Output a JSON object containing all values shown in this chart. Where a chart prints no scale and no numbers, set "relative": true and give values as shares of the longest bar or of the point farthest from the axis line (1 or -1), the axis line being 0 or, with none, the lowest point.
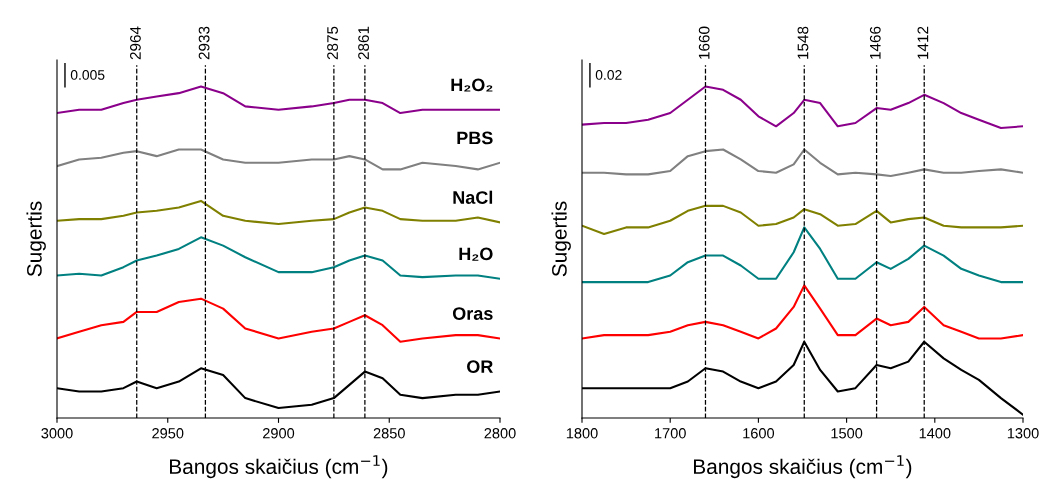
{
  "chart_data": [
    {
      "type": "line",
      "relative": true,
      "xlabel": "Bangos skaičius (cm$^{−1}$)",
      "ylabel": "Sugertis",
      "annotations": [
        "0.005"
      ],
      "x": [
        3000,
        2990,
        2980,
        2970,
        2964,
        2955,
        2945,
        2935,
        2925,
        2915,
        2900,
        2885,
        2875,
        2868,
        2861,
        2853,
        2845,
        2835,
        2820,
        2810,
        2800
      ],
      "xlim": [
        3000,
        2800
      ],
      "xticks": [
        3000,
        2950,
        2900,
        2850,
        2800
      ],
      "ref_lines": [
        {
          "axis": "x",
          "value": 2964,
          "label": "2964",
          "line_style": "dashed",
          "color": "#000000"
        },
        {
          "axis": "x",
          "value": 2933,
          "label": "2933",
          "line_style": "dashed",
          "color": "#000000"
        },
        {
          "axis": "x",
          "value": 2875,
          "label": "2875",
          "line_style": "dashed",
          "color": "#000000"
        },
        {
          "axis": "x",
          "value": 2861,
          "label": "2861",
          "line_style": "dashed",
          "color": "#000000"
        }
      ],
      "series": [
        {
          "name": "H₂O₂",
          "color": "#8b008b",
          "values": [
            0.92,
            0.93,
            0.93,
            0.95,
            0.96,
            0.97,
            0.98,
            1.0,
            0.98,
            0.94,
            0.93,
            0.94,
            0.95,
            0.96,
            0.96,
            0.95,
            0.92,
            0.93,
            0.93,
            0.93,
            0.93
          ]
        },
        {
          "name": "PBS",
          "color": "#808080",
          "values": [
            0.76,
            0.78,
            0.785,
            0.8,
            0.805,
            0.79,
            0.81,
            0.81,
            0.78,
            0.77,
            0.77,
            0.78,
            0.78,
            0.79,
            0.78,
            0.75,
            0.75,
            0.77,
            0.76,
            0.75,
            0.77
          ]
        },
        {
          "name": "NaCl",
          "color": "#808000",
          "values": [
            0.595,
            0.6,
            0.6,
            0.61,
            0.62,
            0.625,
            0.635,
            0.655,
            0.61,
            0.595,
            0.585,
            0.595,
            0.6,
            0.62,
            0.635,
            0.625,
            0.6,
            0.595,
            0.595,
            0.605,
            0.59
          ]
        },
        {
          "name": "H₂O",
          "color": "#008080",
          "values": [
            0.43,
            0.435,
            0.43,
            0.455,
            0.475,
            0.49,
            0.51,
            0.545,
            0.52,
            0.485,
            0.44,
            0.44,
            0.455,
            0.475,
            0.49,
            0.475,
            0.43,
            0.425,
            0.43,
            0.43,
            0.42
          ]
        },
        {
          "name": "Oras",
          "color": "#ff0000",
          "values": [
            0.24,
            0.26,
            0.28,
            0.29,
            0.32,
            0.32,
            0.35,
            0.36,
            0.33,
            0.27,
            0.24,
            0.26,
            0.27,
            0.29,
            0.31,
            0.28,
            0.23,
            0.24,
            0.25,
            0.25,
            0.24
          ]
        },
        {
          "name": "OR",
          "color": "#000000",
          "values": [
            0.09,
            0.08,
            0.08,
            0.09,
            0.11,
            0.09,
            0.11,
            0.15,
            0.13,
            0.06,
            0.03,
            0.04,
            0.06,
            0.1,
            0.14,
            0.12,
            0.07,
            0.06,
            0.07,
            0.07,
            0.08
          ]
        }
      ]
    },
    {
      "type": "line",
      "relative": true,
      "xlabel": "Bangos skaičius (cm$^{−1}$)",
      "ylabel": "Sugertis",
      "annotations": [
        "0.02"
      ],
      "x": [
        1800,
        1775,
        1750,
        1725,
        1700,
        1680,
        1660,
        1640,
        1620,
        1600,
        1580,
        1560,
        1548,
        1530,
        1510,
        1490,
        1466,
        1450,
        1430,
        1412,
        1390,
        1370,
        1350,
        1325,
        1300
      ],
      "xlim": [
        1800,
        1300
      ],
      "xticks": [
        1800,
        1700,
        1600,
        1500,
        1400,
        1300
      ],
      "ref_lines": [
        {
          "axis": "x",
          "value": 1660,
          "label": "1660",
          "line_style": "dashed",
          "color": "#000000"
        },
        {
          "axis": "x",
          "value": 1548,
          "label": "1548",
          "line_style": "dashed",
          "color": "#000000"
        },
        {
          "axis": "x",
          "value": 1466,
          "label": "1466",
          "line_style": "dashed",
          "color": "#000000"
        },
        {
          "axis": "x",
          "value": 1412,
          "label": "1412",
          "line_style": "dashed",
          "color": "#000000"
        }
      ],
      "series": [
        {
          "color": "#8b008b",
          "values": [
            0.885,
            0.89,
            0.89,
            0.9,
            0.92,
            0.96,
            1.0,
            0.99,
            0.96,
            0.91,
            0.88,
            0.92,
            0.96,
            0.95,
            0.88,
            0.89,
            0.935,
            0.93,
            0.95,
            0.975,
            0.95,
            0.92,
            0.9,
            0.875,
            0.88
          ]
        },
        {
          "color": "#808080",
          "values": [
            0.74,
            0.74,
            0.735,
            0.735,
            0.745,
            0.79,
            0.805,
            0.81,
            0.78,
            0.745,
            0.74,
            0.765,
            0.81,
            0.77,
            0.735,
            0.74,
            0.735,
            0.73,
            0.74,
            0.75,
            0.74,
            0.74,
            0.745,
            0.75,
            0.74
          ]
        },
        {
          "color": "#808000",
          "values": [
            0.58,
            0.555,
            0.575,
            0.575,
            0.595,
            0.625,
            0.64,
            0.64,
            0.62,
            0.58,
            0.585,
            0.605,
            0.63,
            0.615,
            0.58,
            0.585,
            0.625,
            0.59,
            0.6,
            0.605,
            0.58,
            0.575,
            0.575,
            0.575,
            0.58
          ]
        },
        {
          "color": "#008080",
          "values": [
            0.41,
            0.41,
            0.41,
            0.41,
            0.43,
            0.47,
            0.49,
            0.49,
            0.46,
            0.42,
            0.42,
            0.5,
            0.575,
            0.51,
            0.42,
            0.42,
            0.47,
            0.45,
            0.48,
            0.52,
            0.49,
            0.45,
            0.43,
            0.41,
            0.41
          ]
        },
        {
          "color": "#ff0000",
          "values": [
            0.24,
            0.25,
            0.25,
            0.25,
            0.26,
            0.28,
            0.29,
            0.28,
            0.26,
            0.24,
            0.27,
            0.335,
            0.4,
            0.33,
            0.25,
            0.25,
            0.3,
            0.28,
            0.29,
            0.335,
            0.28,
            0.26,
            0.24,
            0.24,
            0.25
          ]
        },
        {
          "color": "#000000",
          "values": [
            0.09,
            0.09,
            0.09,
            0.09,
            0.09,
            0.11,
            0.15,
            0.14,
            0.11,
            0.09,
            0.11,
            0.16,
            0.23,
            0.145,
            0.08,
            0.09,
            0.16,
            0.15,
            0.17,
            0.23,
            0.18,
            0.145,
            0.115,
            0.06,
            0.01
          ]
        }
      ]
    }
  ]
}
